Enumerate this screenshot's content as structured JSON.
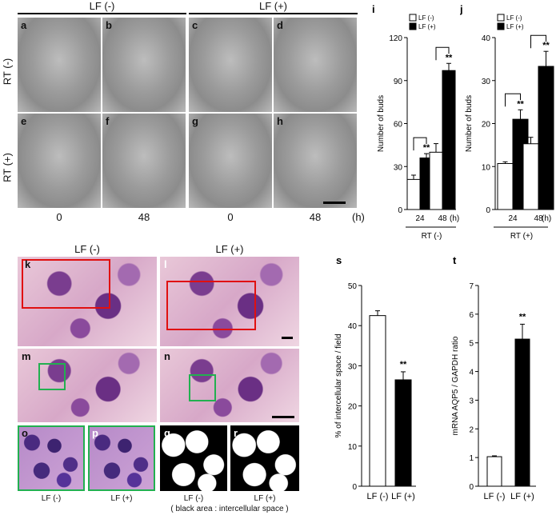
{
  "top": {
    "group_left": "LF (-)",
    "group_right": "LF (+)",
    "row_labels": [
      "RT (-)",
      "RT (+)"
    ],
    "panel_letters": [
      "a",
      "b",
      "c",
      "d",
      "e",
      "f",
      "g",
      "h"
    ],
    "time_labels": [
      "0",
      "48",
      "0",
      "48"
    ],
    "unit": "(h)"
  },
  "bottom": {
    "group_left": "LF (-)",
    "group_right": "LF (+)",
    "panel_letters": [
      "k",
      "l",
      "m",
      "n",
      "o",
      "p",
      "q",
      "r"
    ],
    "under_labels": [
      "LF (-)",
      "LF (+)",
      "LF (-)",
      "LF (+)"
    ],
    "caption": "( black area : intercellular space )"
  },
  "chart_data": [
    {
      "panel": "i",
      "type": "bar",
      "ylabel": "Number of buds",
      "ylim": [
        0,
        120
      ],
      "yticks": [
        0,
        30,
        60,
        90,
        120
      ],
      "categories": [
        "24",
        "48"
      ],
      "x_unit": "(h)",
      "group_label": "RT (-)",
      "legend": [
        "LF (-)",
        "LF (+)"
      ],
      "series": [
        {
          "name": "LF (-)",
          "values": [
            21,
            40
          ],
          "errors": [
            3,
            6
          ],
          "color": "#ffffff"
        },
        {
          "name": "LF (+)",
          "values": [
            36,
            97
          ],
          "errors": [
            3,
            5
          ],
          "color": "#000000"
        }
      ],
      "annotations": [
        "**",
        "**"
      ]
    },
    {
      "panel": "j",
      "type": "bar",
      "ylabel": "Number of buds",
      "ylim": [
        0,
        40
      ],
      "yticks": [
        0,
        10,
        20,
        30,
        40
      ],
      "categories": [
        "24",
        "48"
      ],
      "x_unit": "(h)",
      "group_label": "RT (+)",
      "legend": [
        "LF (-)",
        "LF (+)"
      ],
      "series": [
        {
          "name": "LF (-)",
          "values": [
            10.7,
            15.3
          ],
          "errors": [
            0.4,
            1.5
          ],
          "color": "#ffffff"
        },
        {
          "name": "LF (+)",
          "values": [
            21,
            33.3
          ],
          "errors": [
            2.2,
            3.5
          ],
          "color": "#000000"
        }
      ],
      "annotations": [
        "**",
        "**"
      ]
    },
    {
      "panel": "s",
      "type": "bar",
      "ylabel": "% of intercellular space / field",
      "ylim": [
        0,
        50
      ],
      "yticks": [
        0,
        10,
        20,
        30,
        40,
        50
      ],
      "categories": [
        "LF (-)",
        "LF (+)"
      ],
      "values": [
        42.5,
        26.5
      ],
      "errors": [
        1.2,
        2.0
      ],
      "colors": [
        "#ffffff",
        "#000000"
      ],
      "annotations": [
        "",
        "**"
      ]
    },
    {
      "panel": "t",
      "type": "bar",
      "ylabel": "mRNA AQP5 / GAPDH ratio",
      "ylim": [
        0,
        7
      ],
      "yticks": [
        0,
        1,
        2,
        3,
        4,
        5,
        6,
        7
      ],
      "categories": [
        "LF (-)",
        "LF (+)"
      ],
      "values": [
        1.03,
        5.13
      ],
      "errors": [
        0.03,
        0.52
      ],
      "colors": [
        "#ffffff",
        "#000000"
      ],
      "annotations": [
        "",
        "**"
      ]
    }
  ]
}
